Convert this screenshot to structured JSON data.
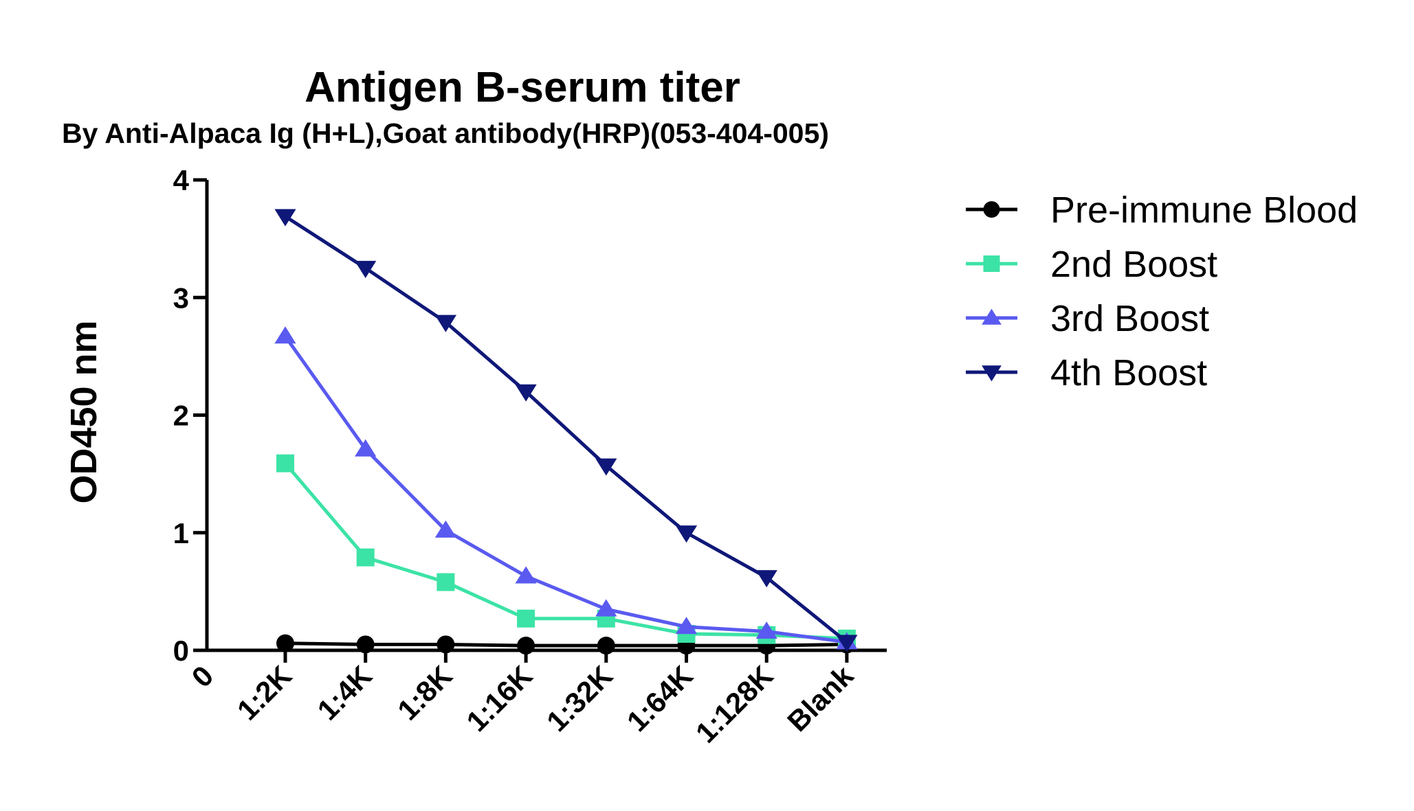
{
  "chart_data": {
    "type": "line",
    "title": "Antigen B-serum titer",
    "subtitle": "By Anti-Alpaca Ig (H+L),Goat antibody(HRP)(053-404-005)",
    "xlabel": "",
    "ylabel": "OD450 nm",
    "x_origin_label": "0",
    "categories": [
      "1:2K",
      "1:4K",
      "1:8K",
      "1:16K",
      "1:32K",
      "1:64K",
      "1:128K",
      "Blank"
    ],
    "ylim": [
      0,
      4
    ],
    "yticks": [
      "0",
      "1",
      "2",
      "3",
      "4"
    ],
    "grid": false,
    "legend_position": "right",
    "series": [
      {
        "name": "Pre-immune Blood",
        "color": "#000000",
        "marker": "circle",
        "values": [
          0.06,
          0.05,
          0.05,
          0.04,
          0.04,
          0.04,
          0.04,
          0.05
        ]
      },
      {
        "name": "2nd Boost",
        "color": "#3CE3A6",
        "marker": "square",
        "values": [
          1.59,
          0.79,
          0.58,
          0.27,
          0.27,
          0.14,
          0.13,
          0.1
        ]
      },
      {
        "name": "3rd Boost",
        "color": "#5A5AF0",
        "marker": "triangle-up",
        "values": [
          2.67,
          1.71,
          1.02,
          0.63,
          0.35,
          0.2,
          0.16,
          0.07
        ]
      },
      {
        "name": "4th Boost",
        "color": "#0F1878",
        "marker": "triangle-down",
        "values": [
          3.69,
          3.25,
          2.79,
          2.2,
          1.57,
          1.0,
          0.62,
          0.07
        ]
      }
    ]
  }
}
